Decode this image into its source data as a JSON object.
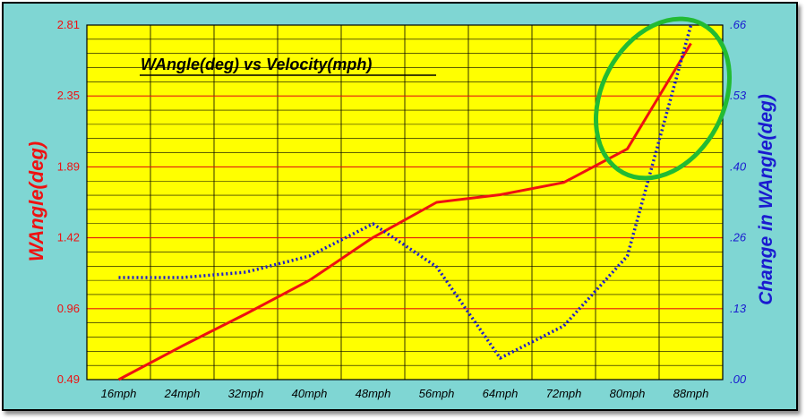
{
  "chart_data": {
    "type": "line",
    "title": "WAngle(deg) vs Velocity(mph)",
    "xlabel": "",
    "ylabel": "WAngle(deg)",
    "y2label": "Change in WAngle(deg)",
    "categories": [
      "16mph",
      "24mph",
      "32mph",
      "40mph",
      "48mph",
      "56mph",
      "64mph",
      "72mph",
      "80mph",
      "88mph"
    ],
    "y_ticks": [
      "0.49",
      "0.96",
      "1.42",
      "1.89",
      "2.35",
      "2.81"
    ],
    "y2_ticks": [
      ".00",
      ".13",
      ".26",
      ".40",
      ".53",
      ".66"
    ],
    "ylim": [
      0.49,
      2.81
    ],
    "y2lim": [
      0.0,
      0.66
    ],
    "grid": true,
    "series": [
      {
        "axis": "left",
        "color": "#ee1111",
        "style": "solid",
        "values": [
          0.49,
          0.71,
          0.92,
          1.14,
          1.42,
          1.65,
          1.7,
          1.78,
          2.0,
          2.69
        ]
      },
      {
        "axis": "right",
        "color": "#1a1ad0",
        "style": "dotted",
        "values": [
          0.19,
          0.19,
          0.2,
          0.23,
          0.29,
          0.21,
          0.04,
          0.1,
          0.23,
          0.66
        ]
      }
    ],
    "annotation": {
      "shape": "ellipse",
      "color": "#22bb33",
      "around": [
        "80mph",
        "88mph"
      ]
    },
    "colors": {
      "frame": "#7fd6d3",
      "plot_bg": "#ffff00",
      "left_axis": "#ee1111",
      "right_axis": "#1a1ad0"
    }
  }
}
